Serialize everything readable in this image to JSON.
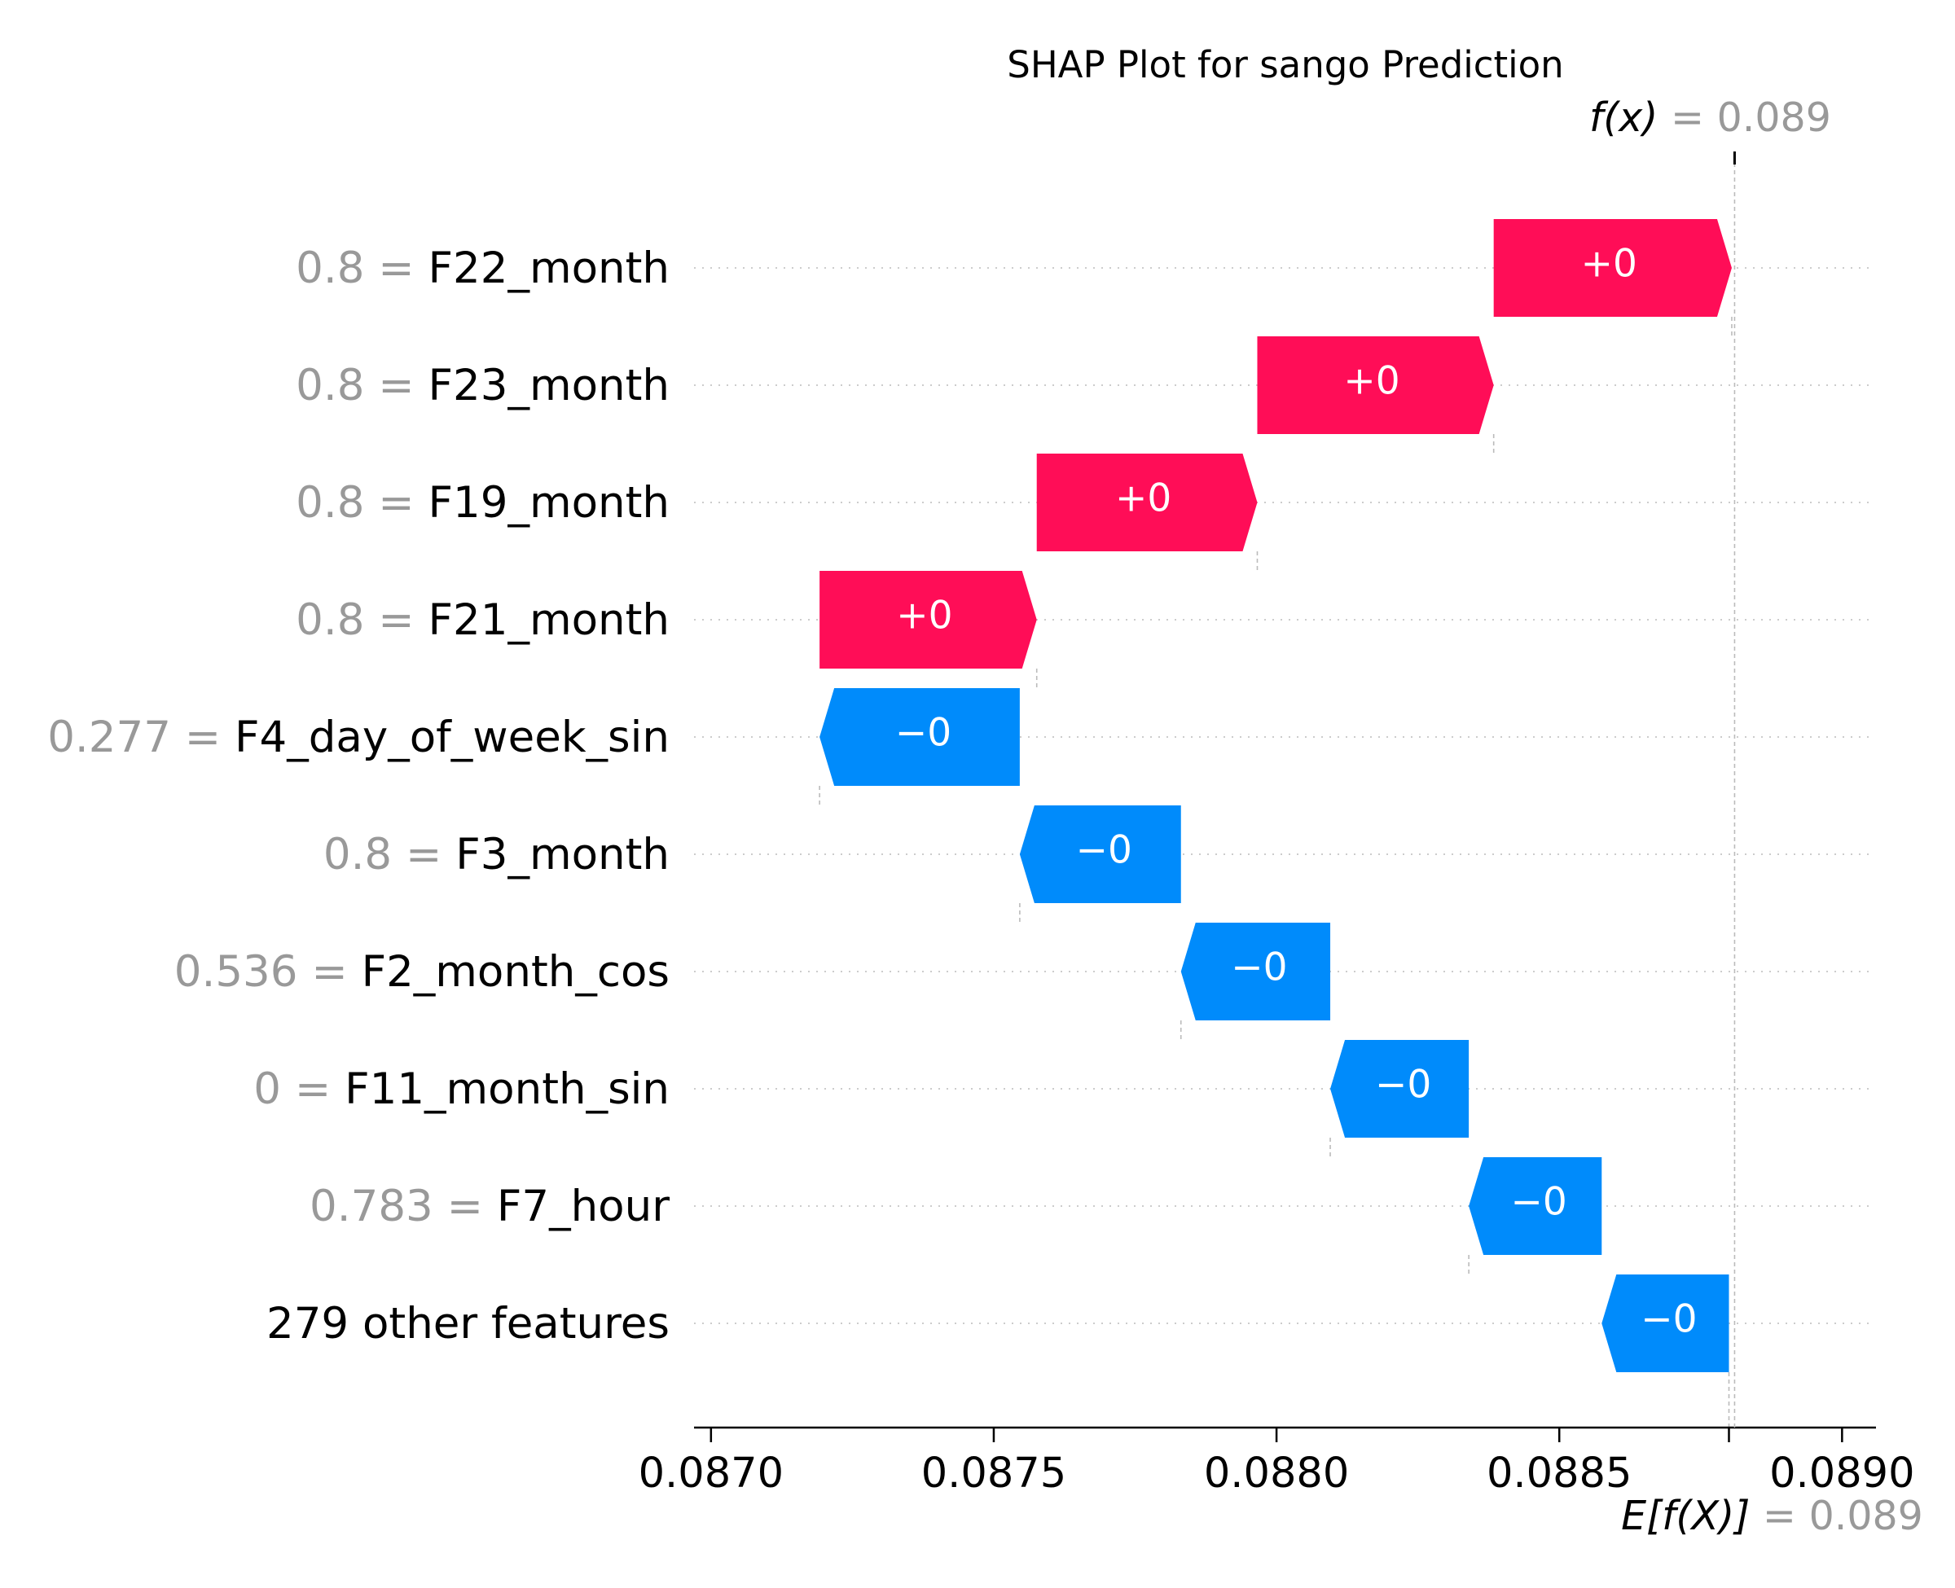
{
  "chart_data": {
    "type": "waterfall",
    "title": "SHAP Plot for sango Prediction",
    "xlim": [
      0.08697,
      0.08906
    ],
    "x_ticks": [
      {
        "value": 0.087,
        "label": "0.0870"
      },
      {
        "value": 0.0875,
        "label": "0.0875"
      },
      {
        "value": 0.088,
        "label": "0.0880"
      },
      {
        "value": 0.0885,
        "label": "0.0885"
      },
      {
        "value": 0.089,
        "label": "0.0890"
      }
    ],
    "fx": {
      "label": "f(x)",
      "value": 0.08881,
      "value_text": "0.089"
    },
    "expected_value": {
      "label": "E[f(X)]",
      "value": 0.0888,
      "value_text": "0.089"
    },
    "colors": {
      "positive": "#ff0d57",
      "negative": "#008bfb"
    },
    "features": [
      {
        "value_text": "0.8",
        "name": "F22_month",
        "start": 0.088384,
        "end": 0.088805,
        "label": "+0",
        "sign": "positive"
      },
      {
        "value_text": "0.8",
        "name": "F23_month",
        "start": 0.087966,
        "end": 0.088384,
        "label": "+0",
        "sign": "positive"
      },
      {
        "value_text": "0.8",
        "name": "F19_month",
        "start": 0.087576,
        "end": 0.087966,
        "label": "+0",
        "sign": "positive"
      },
      {
        "value_text": "0.8",
        "name": "F21_month",
        "start": 0.087192,
        "end": 0.087576,
        "label": "+0",
        "sign": "positive"
      },
      {
        "value_text": "0.277",
        "name": "F4_day_of_week_sin",
        "start": 0.087546,
        "end": 0.087192,
        "label": "−0",
        "sign": "negative"
      },
      {
        "value_text": "0.8",
        "name": "F3_month",
        "start": 0.087831,
        "end": 0.087546,
        "label": "−0",
        "sign": "negative"
      },
      {
        "value_text": "0.536",
        "name": "F2_month_cos",
        "start": 0.088095,
        "end": 0.087831,
        "label": "−0",
        "sign": "negative"
      },
      {
        "value_text": "0",
        "name": "F11_month_sin",
        "start": 0.08834,
        "end": 0.088095,
        "label": "−0",
        "sign": "negative"
      },
      {
        "value_text": "0.783",
        "name": "F7_hour",
        "start": 0.088575,
        "end": 0.08834,
        "label": "−0",
        "sign": "negative"
      },
      {
        "value_text": "",
        "name": "279 other features",
        "start": 0.0888,
        "end": 0.088575,
        "label": "−0",
        "sign": "negative"
      }
    ]
  }
}
